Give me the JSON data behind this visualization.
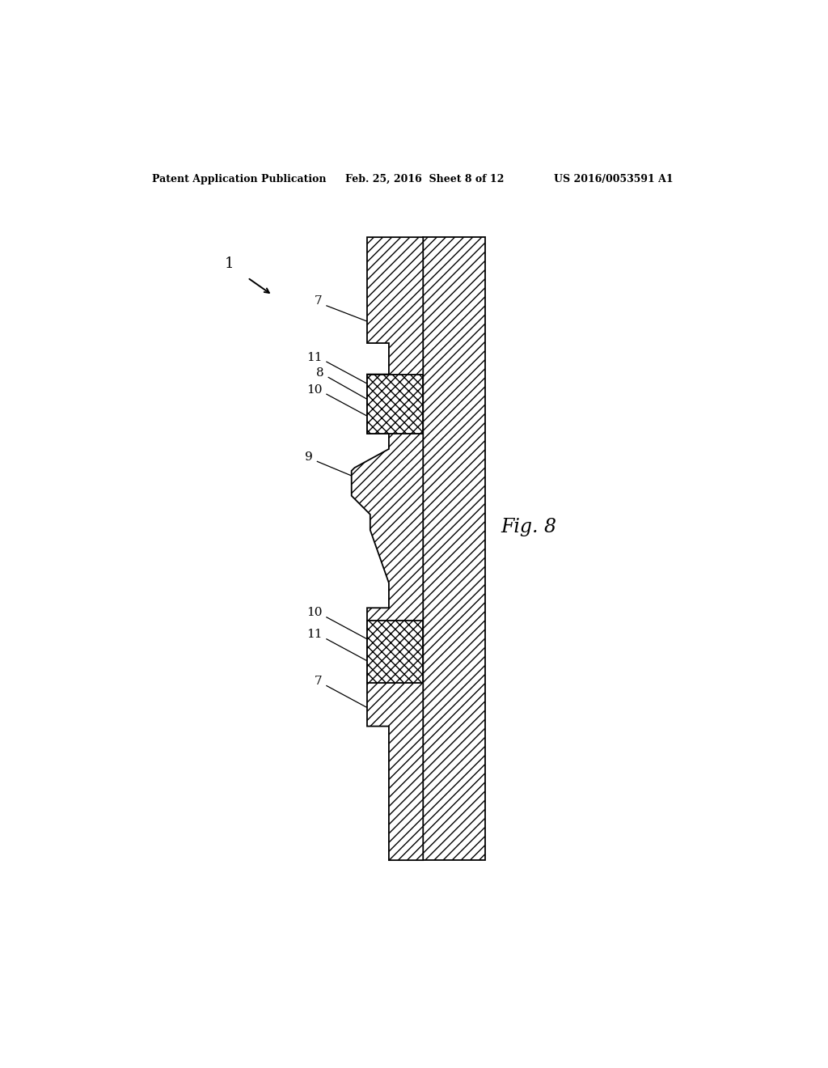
{
  "background_color": "#ffffff",
  "header_left": "Patent Application Publication",
  "header_center": "Feb. 25, 2016  Sheet 8 of 12",
  "header_right": "US 2016/0053591 A1",
  "fig_label": "Fig. 8",
  "line_color": "#000000"
}
